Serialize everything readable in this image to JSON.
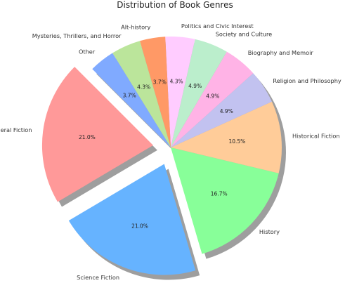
{
  "chart_data": {
    "type": "pie",
    "title": "Distribution of Book Genres",
    "start_angle_deg": 135,
    "direction": "counterclockwise",
    "shadow": true,
    "slices": [
      {
        "label": "General Fiction",
        "value": 21.0,
        "pct_text": "21.0%",
        "color": "#ff9999",
        "explode": true
      },
      {
        "label": "Science Fiction",
        "value": 21.0,
        "pct_text": "21.0%",
        "color": "#66b3ff",
        "explode": true
      },
      {
        "label": "History",
        "value": 16.7,
        "pct_text": "16.7%",
        "color": "#88ff99",
        "explode": false
      },
      {
        "label": "Historical Fiction",
        "value": 10.5,
        "pct_text": "10.5%",
        "color": "#ffcc99",
        "explode": false
      },
      {
        "label": "Religion and Philosophy",
        "value": 4.9,
        "pct_text": "4.9%",
        "color": "#c2c2f0",
        "explode": false
      },
      {
        "label": "Biography and Memoir",
        "value": 4.9,
        "pct_text": "4.9%",
        "color": "#ffb3e6",
        "explode": false
      },
      {
        "label": "Society and Culture",
        "value": 4.9,
        "pct_text": "4.9%",
        "color": "#bbeecc",
        "explode": false
      },
      {
        "label": "Politics and Civic Interest",
        "value": 4.3,
        "pct_text": "4.3%",
        "color": "#ffccff",
        "explode": false
      },
      {
        "label": "Alt-history",
        "value": 3.7,
        "pct_text": "3.7%",
        "color": "#ff9966",
        "explode": false
      },
      {
        "label": "Mysteries, Thrillers, and Horror",
        "value": 4.3,
        "pct_text": "4.3%",
        "color": "#bbe59b",
        "explode": false
      },
      {
        "label": "Other",
        "value": 3.7,
        "pct_text": "3.7%",
        "color": "#80aaff",
        "explode": false
      }
    ]
  }
}
